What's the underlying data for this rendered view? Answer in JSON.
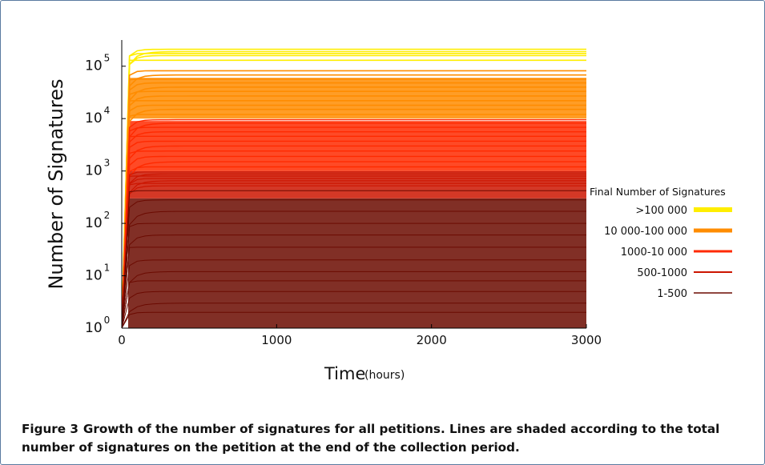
{
  "figure": {
    "label": "Figure 3",
    "caption": "Growth of the number of signatures for all petitions. Lines are shaded according to the total number of signatures on the petition at the end of the collection period."
  },
  "chart_data": {
    "type": "line",
    "title": "",
    "xlabel": "Time",
    "xlabel_unit": "(hours)",
    "ylabel": "Number of Signatures",
    "x_ticks": [
      "0",
      "1000",
      "2000",
      "3000"
    ],
    "x_tick_values": [
      0,
      1000,
      2000,
      3000
    ],
    "y_ticks": [
      {
        "base": "10",
        "exp": "0",
        "value": 1
      },
      {
        "base": "10",
        "exp": "1",
        "value": 10
      },
      {
        "base": "10",
        "exp": "2",
        "value": 100
      },
      {
        "base": "10",
        "exp": "3",
        "value": 1000
      },
      {
        "base": "10",
        "exp": "4",
        "value": 10000
      },
      {
        "base": "10",
        "exp": "5",
        "value": 100000
      }
    ],
    "y_scale": "log",
    "xlim": [
      0,
      3000
    ],
    "ylim": [
      1,
      316228
    ],
    "legend_title": "Final Number of Signatures",
    "legend_position": "right",
    "series": [
      {
        "name": ">100 000",
        "color": "#ffee00",
        "final_values": [
          130000,
          160000,
          175000,
          190000,
          210000
        ]
      },
      {
        "name": "10 000-100 000",
        "color": "#ff8c00",
        "final_values": [
          12000,
          15000,
          18000,
          22000,
          27000,
          33000,
          40000,
          48000,
          57000,
          68000,
          82000
        ]
      },
      {
        "name": "1000-10 000",
        "color": "#ff2a00",
        "final_values": [
          1200,
          1500,
          1900,
          2400,
          3000,
          3700,
          4600,
          5600,
          6800,
          8200,
          9500
        ]
      },
      {
        "name": "500-1000",
        "color": "#cc1500",
        "final_values": [
          520,
          580,
          650,
          720,
          800,
          880,
          960
        ]
      },
      {
        "name": "1-500",
        "color": "#6b0a00",
        "final_values": [
          1,
          2,
          3,
          5,
          8,
          12,
          20,
          35,
          60,
          100,
          170,
          280,
          420
        ]
      }
    ]
  }
}
